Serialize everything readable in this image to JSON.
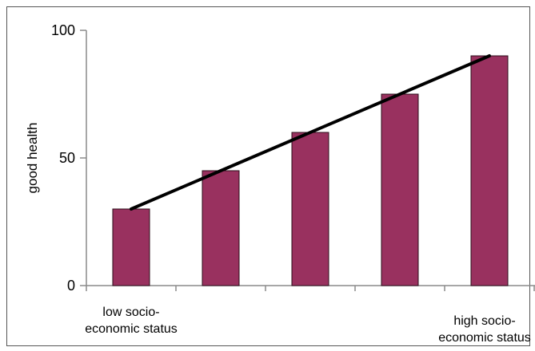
{
  "chart_data": {
    "type": "bar",
    "categories": [
      "1",
      "2",
      "3",
      "4",
      "5"
    ],
    "category_labels": [
      [
        "low socio-",
        "economic status"
      ],
      [],
      [],
      [],
      [
        "high socio-",
        "economic status"
      ]
    ],
    "values": [
      30,
      45,
      60,
      75,
      90
    ],
    "trendline": {
      "from": {
        "category_index": 0,
        "y": 30
      },
      "to": {
        "category_index": 4,
        "y": 90
      }
    },
    "title": "",
    "xlabel": "",
    "ylabel": "good health",
    "ylim": [
      0,
      100
    ],
    "yticks": [
      0,
      50,
      100
    ],
    "grid": false,
    "legend": "none",
    "colors": {
      "bar_fill": "#99315F",
      "bar_stroke": "#2a0d1a",
      "trendline": "#000000",
      "axis": "#8a8a8a"
    }
  }
}
